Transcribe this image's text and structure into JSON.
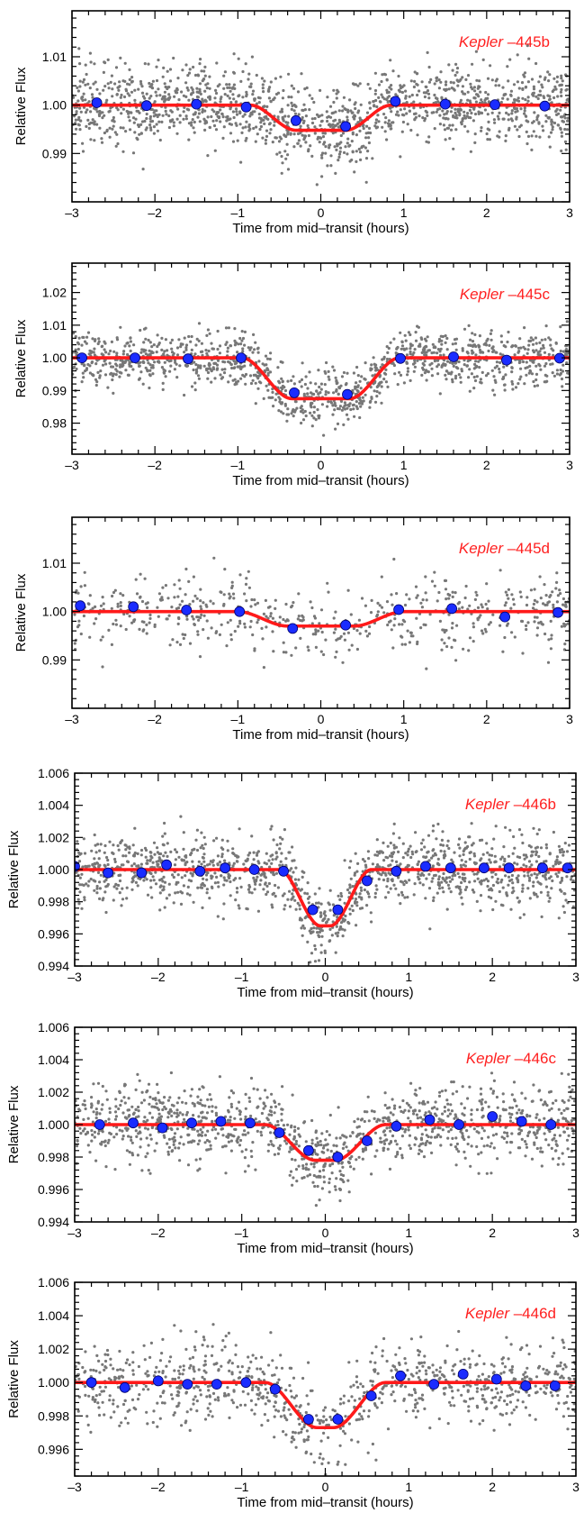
{
  "chart_data": [
    {
      "type": "scatter",
      "label": {
        "prefix": "Kepler",
        "suffix": " –445b"
      },
      "xlabel": "Time from mid–transit (hours)",
      "ylabel": "Relative Flux",
      "xlim": [
        -3,
        3
      ],
      "ylim": [
        0.98,
        1.0195
      ],
      "xticks": [
        -3,
        -2,
        -1,
        0,
        1,
        2,
        3
      ],
      "yticks": [
        0.99,
        1.0,
        1.01
      ],
      "ytick_labels": [
        "0.99",
        "1.00",
        "1.01"
      ],
      "model": {
        "depth": 0.0052,
        "t1": 0.85,
        "t2": 0.3,
        "baseline": 1.0
      },
      "raw_scatter": {
        "count": 1500,
        "sigma": 0.004,
        "seed": 445
      },
      "binned": {
        "x": [
          -2.7,
          -2.1,
          -1.5,
          -0.9,
          -0.3,
          0.3,
          0.9,
          1.5,
          2.1,
          2.7
        ],
        "y": [
          1.0005,
          0.9999,
          1.0002,
          0.9996,
          0.9968,
          0.9956,
          1.0008,
          1.0002,
          1.0001,
          0.9998
        ]
      },
      "colors": {
        "raw": "#777777",
        "binned": "#1a2cff",
        "model": "#ff1a1a",
        "label": "#ff2020"
      }
    },
    {
      "type": "scatter",
      "label": {
        "prefix": "Kepler",
        "suffix": " –445c"
      },
      "xlabel": "Time from mid–transit (hours)",
      "ylabel": "Relative Flux",
      "xlim": [
        -3,
        3
      ],
      "ylim": [
        0.9705,
        1.029
      ],
      "xticks": [
        -3,
        -2,
        -1,
        0,
        1,
        2,
        3
      ],
      "yticks": [
        0.98,
        0.99,
        1.0,
        1.01,
        1.02
      ],
      "ytick_labels": [
        "0.98",
        "0.99",
        "1.00",
        "1.01",
        "1.02"
      ],
      "model": {
        "depth": 0.0125,
        "t1": 0.95,
        "t2": 0.35,
        "baseline": 1.0
      },
      "raw_scatter": {
        "count": 1300,
        "sigma": 0.004,
        "seed": 4452
      },
      "binned": {
        "x": [
          -2.88,
          -2.24,
          -1.6,
          -0.96,
          -0.32,
          0.32,
          0.96,
          1.6,
          2.24,
          2.88
        ],
        "y": [
          1.0,
          1.0,
          0.9997,
          1.0,
          0.9893,
          0.9888,
          0.9998,
          1.0003,
          0.9993,
          0.9999
        ]
      },
      "colors": {
        "raw": "#777777",
        "binned": "#1a2cff",
        "model": "#ff1a1a",
        "label": "#ff2020"
      }
    },
    {
      "type": "scatter",
      "label": {
        "prefix": "Kepler",
        "suffix": " –445d"
      },
      "xlabel": "Time from mid–transit (hours)",
      "ylabel": "Relative Flux",
      "xlim": [
        -3,
        3
      ],
      "ylim": [
        0.98,
        1.0195
      ],
      "xticks": [
        -3,
        -2,
        -1,
        0,
        1,
        2,
        3
      ],
      "yticks": [
        0.99,
        1.0,
        1.01
      ],
      "ytick_labels": [
        "0.99",
        "1.00",
        "1.01"
      ],
      "model": {
        "depth": 0.003,
        "t1": 1.0,
        "t2": 0.4,
        "baseline": 1.0
      },
      "raw_scatter": {
        "count": 560,
        "sigma": 0.004,
        "seed": 4453
      },
      "binned": {
        "x": [
          -2.9,
          -2.26,
          -1.62,
          -0.98,
          -0.34,
          0.3,
          0.94,
          1.58,
          2.22,
          2.86
        ],
        "y": [
          1.0012,
          1.001,
          1.0003,
          1.0,
          0.9965,
          0.9972,
          1.0004,
          1.0006,
          0.9989,
          0.9998
        ]
      },
      "colors": {
        "raw": "#777777",
        "binned": "#1a2cff",
        "model": "#ff1a1a",
        "label": "#ff2020"
      }
    },
    {
      "type": "scatter",
      "label": {
        "prefix": "Kepler",
        "suffix": " –446b"
      },
      "xlabel": "Time from mid–transit (hours)",
      "ylabel": "Relative Flux",
      "xlim": [
        -3,
        3
      ],
      "ylim": [
        0.994,
        1.006
      ],
      "xticks": [
        -3,
        -2,
        -1,
        0,
        1,
        2,
        3
      ],
      "yticks": [
        0.994,
        0.996,
        0.998,
        1.0,
        1.002,
        1.004,
        1.006
      ],
      "ytick_labels": [
        "0.994",
        "0.996",
        "0.998",
        "1.000",
        "1.002",
        "1.004",
        "1.006"
      ],
      "model": {
        "depth": 0.0035,
        "t1": 0.55,
        "t2": 0.06,
        "baseline": 1.0
      },
      "raw_scatter": {
        "count": 1300,
        "sigma": 0.0011,
        "seed": 446
      },
      "binned": {
        "x": [
          -3.0,
          -2.6,
          -2.2,
          -1.9,
          -1.5,
          -1.2,
          -0.85,
          -0.5,
          -0.15,
          0.15,
          0.5,
          0.85,
          1.2,
          1.5,
          1.9,
          2.2,
          2.6,
          2.9
        ],
        "y": [
          1.0002,
          0.9998,
          0.9998,
          1.0003,
          0.9999,
          1.0001,
          1.0,
          0.9999,
          0.9975,
          0.9975,
          0.9993,
          0.9999,
          1.0002,
          1.0001,
          1.0001,
          1.0001,
          1.0001,
          1.0001
        ]
      },
      "colors": {
        "raw": "#777777",
        "binned": "#1a2cff",
        "model": "#ff1a1a",
        "label": "#ff2020"
      }
    },
    {
      "type": "scatter",
      "label": {
        "prefix": "Kepler",
        "suffix": " –446c"
      },
      "xlabel": "Time from mid–transit (hours)",
      "ylabel": "Relative Flux",
      "xlim": [
        -3,
        3
      ],
      "ylim": [
        0.994,
        1.006
      ],
      "xticks": [
        -3,
        -2,
        -1,
        0,
        1,
        2,
        3
      ],
      "yticks": [
        0.994,
        0.996,
        0.998,
        1.0,
        1.002,
        1.004,
        1.006
      ],
      "ytick_labels": [
        "0.994",
        "0.996",
        "0.998",
        "1.000",
        "1.002",
        "1.004",
        "1.006"
      ],
      "model": {
        "depth": 0.0022,
        "t1": 0.72,
        "t2": 0.12,
        "baseline": 1.0
      },
      "raw_scatter": {
        "count": 1200,
        "sigma": 0.0012,
        "seed": 4462
      },
      "binned": {
        "x": [
          -2.7,
          -2.3,
          -1.95,
          -1.6,
          -1.25,
          -0.9,
          -0.55,
          -0.2,
          0.15,
          0.5,
          0.85,
          1.25,
          1.6,
          2.0,
          2.35,
          2.7
        ],
        "y": [
          1.0,
          1.0001,
          0.9998,
          1.0001,
          1.0002,
          1.0001,
          0.9995,
          0.9984,
          0.998,
          0.999,
          0.9999,
          1.0003,
          1.0,
          1.0005,
          1.0002,
          1.0
        ]
      },
      "colors": {
        "raw": "#777777",
        "binned": "#1a2cff",
        "model": "#ff1a1a",
        "label": "#ff2020"
      }
    },
    {
      "type": "scatter",
      "label": {
        "prefix": "Kepler",
        "suffix": " –446d"
      },
      "xlabel": "Time from mid–transit (hours)",
      "ylabel": "Relative Flux",
      "xlim": [
        -3,
        3
      ],
      "ylim": [
        0.9944,
        1.006
      ],
      "xticks": [
        -3,
        -2,
        -1,
        0,
        1,
        2,
        3
      ],
      "yticks": [
        0.996,
        0.998,
        1.0,
        1.002,
        1.004,
        1.006
      ],
      "ytick_labels": [
        "0.996",
        "0.998",
        "1.000",
        "1.002",
        "1.004",
        "1.006"
      ],
      "model": {
        "depth": 0.0027,
        "t1": 0.72,
        "t2": 0.1,
        "baseline": 1.0
      },
      "raw_scatter": {
        "count": 900,
        "sigma": 0.0012,
        "seed": 4463
      },
      "binned": {
        "x": [
          -2.8,
          -2.4,
          -2.0,
          -1.65,
          -1.3,
          -0.95,
          -0.6,
          -0.2,
          0.15,
          0.55,
          0.9,
          1.3,
          1.65,
          2.05,
          2.4,
          2.75
        ],
        "y": [
          1.0,
          0.9997,
          1.0001,
          0.9999,
          0.9999,
          1.0,
          0.9996,
          0.9978,
          0.9978,
          0.9992,
          1.0004,
          0.9999,
          1.0005,
          1.0002,
          0.9998,
          0.9998
        ]
      },
      "colors": {
        "raw": "#777777",
        "binned": "#1a2cff",
        "model": "#ff1a1a",
        "label": "#ff2020"
      }
    }
  ]
}
